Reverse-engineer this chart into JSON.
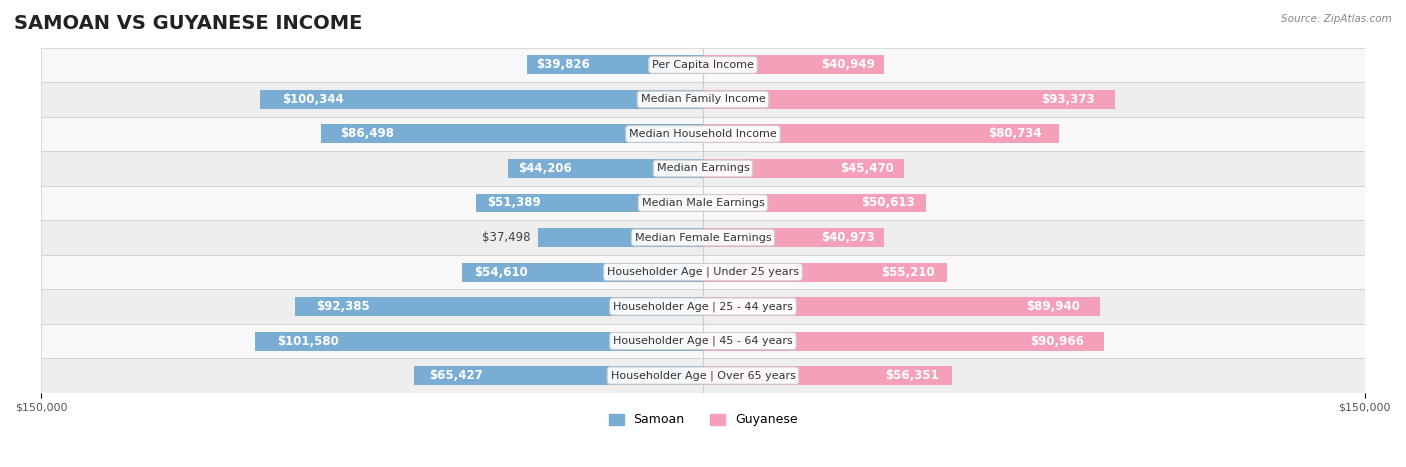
{
  "title": "SAMOAN VS GUYANESE INCOME",
  "source": "Source: ZipAtlas.com",
  "categories": [
    "Per Capita Income",
    "Median Family Income",
    "Median Household Income",
    "Median Earnings",
    "Median Male Earnings",
    "Median Female Earnings",
    "Householder Age | Under 25 years",
    "Householder Age | 25 - 44 years",
    "Householder Age | 45 - 64 years",
    "Householder Age | Over 65 years"
  ],
  "samoan_values": [
    39826,
    100344,
    86498,
    44206,
    51389,
    37498,
    54610,
    92385,
    101580,
    65427
  ],
  "guyanese_values": [
    40949,
    93373,
    80734,
    45470,
    50613,
    40973,
    55210,
    89940,
    90966,
    56351
  ],
  "samoan_color": "#7aadd4",
  "samoan_color_dark": "#4a90c4",
  "guyanese_color": "#f4a0b8",
  "guyanese_color_dark": "#e8608a",
  "max_val": 150000,
  "bar_height": 0.55,
  "background_color": "#f0f0f0",
  "row_bg_light": "#f8f8f8",
  "row_bg_dark": "#eeeeee",
  "label_color_inside": "#ffffff",
  "label_color_outside": "#555555",
  "title_fontsize": 14,
  "label_fontsize": 8.5,
  "category_fontsize": 8,
  "axis_label_fontsize": 8
}
